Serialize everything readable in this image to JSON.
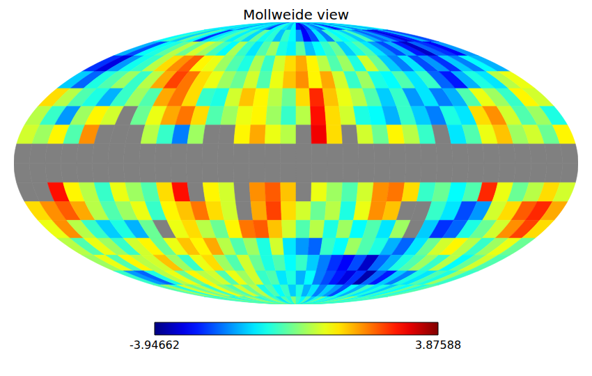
{
  "chart_data": {
    "type": "heatmap",
    "title": "Mollweide view",
    "cells": [
      [
        -1.2,
        -1.0,
        -1.3,
        -0.8,
        -1.5,
        -1.0,
        -2.0,
        -1.2,
        -0.9,
        -1.4,
        -1.1,
        -1.8,
        -2.5,
        -1.0,
        -0.7,
        -1.2,
        -1.5,
        -1.0,
        -2.8,
        -3.2,
        -2.6,
        -1.4,
        -1.8,
        -2.2,
        -1.0,
        -1.6,
        -2.9,
        -2.4,
        -1.2,
        -1.0,
        -2.2,
        -1.6,
        -0.8,
        -1.3,
        -1.9,
        -1.1
      ],
      [
        -1.0,
        -0.6,
        -1.4,
        -0.3,
        -1.0,
        -2.6,
        -1.2,
        -0.8,
        -0.4,
        -1.1,
        -0.5,
        -1.3,
        -0.2,
        -0.9,
        -0.7,
        -1.5,
        -0.6,
        -1.0,
        -1.8,
        -3.0,
        -2.4,
        -1.2,
        -2.0,
        -0.6,
        -1.0,
        -0.8,
        -1.4,
        -0.5,
        -1.6,
        -2.2,
        -1.8,
        -2.6,
        -3.2,
        -2.8,
        -1.6,
        -2.4
      ],
      [
        -1.6,
        -2.4,
        -1.0,
        -0.8,
        -0.3,
        0.4,
        -0.2,
        0.6,
        0.2,
        -0.5,
        -1.0,
        0.3,
        -0.6,
        -1.2,
        -0.4,
        0.2,
        -0.8,
        -1.1,
        -0.3,
        -1.5,
        -1.0,
        -0.6,
        -0.2,
        -1.4,
        -0.8,
        -0.4,
        -1.2,
        -1.8,
        -2.4,
        -1.6,
        -2.8,
        -3.4,
        -2.2,
        -2.6,
        -3.0,
        -1.8
      ],
      [
        -2.6,
        -3.2,
        -1.8,
        -0.9,
        -0.6,
        0.4,
        1.2,
        1.8,
        2.2,
        1.0,
        0.8,
        0.2,
        -0.4,
        -0.8,
        0.3,
        -0.6,
        0.6,
        1.2,
        1.6,
        1.0,
        0.4,
        -0.4,
        0.2,
        -0.8,
        0.6,
        -0.2,
        -1.4,
        -2.0,
        -1.2,
        -2.4,
        -1.8,
        -2.6,
        -1.4,
        -2.0,
        -1.0,
        -1.6
      ],
      [
        -1.4,
        -2.2,
        -0.8,
        -0.4,
        0.2,
        -0.6,
        0.4,
        1.6,
        2.4,
        2.0,
        1.2,
        0.8,
        0.2,
        -0.2,
        0.6,
        -0.4,
        0.8,
        1.4,
        1.8,
        1.0,
        1.6,
        0.6,
        -0.6,
        0.2,
        -0.8,
        -1.0,
        -0.4,
        -1.2,
        -0.6,
        -2.2,
        -2.8,
        -1.6,
        -0.8,
        -1.2,
        0.4,
        0.8
      ],
      [
        1.2,
        0.4,
        -0.4,
        -0.8,
        -1.6,
        -0.6,
        0.2,
        -0.4,
        1.6,
        2.0,
        1.2,
        -0.6,
        -0.8,
        0.6,
        1.4,
        1.0,
        0.4,
        -0.2,
        1.2,
        2.6,
        1.4,
        0.8,
        0.4,
        -0.4,
        -1.4,
        -0.6,
        -1.8,
        -1.2,
        -2.0,
        -1.6,
        -0.4,
        0.8,
        0.2,
        -0.6,
        1.0,
        0.6
      ],
      [
        0.4,
        -0.6,
        -1.8,
        0.2,
        1.0,
        0.6,
        null,
        -0.2,
        0.8,
        1.6,
        2.0,
        1.2,
        -0.4,
        0.2,
        0.8,
        1.0,
        0.2,
        -0.6,
        0.4,
        2.8,
        1.2,
        0.6,
        -0.8,
        -1.0,
        -1.6,
        -0.6,
        -1.4,
        -2.0,
        -0.8,
        -1.2,
        1.2,
        1.8,
        0.6,
        -0.4,
        0.2,
        -0.8
      ],
      [
        0.6,
        0.2,
        1.0,
        -0.4,
        1.8,
        null,
        null,
        null,
        0.4,
        -0.6,
        -2.0,
        0.2,
        null,
        null,
        1.0,
        1.6,
        0.8,
        0.4,
        null,
        3.0,
        1.2,
        null,
        0.6,
        -0.2,
        1.0,
        0.4,
        -0.6,
        null,
        -1.2,
        -0.4,
        0.8,
        1.4,
        0.2,
        0.6,
        -0.2,
        1.0
      ],
      [
        null,
        null,
        null,
        null,
        null,
        null,
        null,
        null,
        null,
        null,
        null,
        null,
        null,
        null,
        null,
        null,
        null,
        null,
        null,
        null,
        null,
        null,
        null,
        null,
        null,
        null,
        null,
        null,
        null,
        null,
        null,
        null,
        null,
        null,
        null,
        null
      ],
      [
        null,
        null,
        null,
        null,
        null,
        null,
        null,
        null,
        null,
        null,
        null,
        null,
        null,
        null,
        null,
        null,
        null,
        null,
        null,
        null,
        null,
        null,
        null,
        null,
        null,
        null,
        null,
        null,
        null,
        null,
        null,
        null,
        null,
        null,
        null,
        null
      ],
      [
        null,
        null,
        2.8,
        1.0,
        0.4,
        -0.6,
        0.8,
        0.2,
        -0.4,
        1.2,
        2.8,
        null,
        1.0,
        0.6,
        null,
        1.8,
        2.2,
        1.4,
        null,
        0.8,
        0.2,
        -0.4,
        0.6,
        1.8,
        2.0,
        1.2,
        -0.6,
        -0.2,
        -1.0,
        -0.4,
        2.6,
        0.8,
        -0.2,
        0.4,
        1.2,
        0.6
      ],
      [
        1.2,
        1.8,
        2.2,
        1.6,
        0.4,
        -0.4,
        0.2,
        0.8,
        -0.6,
        1.0,
        1.4,
        2.0,
        1.2,
        0.6,
        null,
        1.6,
        2.4,
        1.2,
        0.6,
        -0.2,
        0.4,
        -0.8,
        0.8,
        1.8,
        1.4,
        null,
        null,
        -0.6,
        -1.2,
        -2.4,
        -1.8,
        0.6,
        1.2,
        2.2,
        2.6,
        1.6
      ],
      [
        0.8,
        1.8,
        0.4,
        -0.6,
        -1.4,
        -0.8,
        -1.6,
        -0.2,
        null,
        0.8,
        1.2,
        0.4,
        -0.2,
        1.0,
        2.0,
        2.2,
        1.4,
        0.6,
        -0.4,
        0.4,
        -0.8,
        0.2,
        -1.0,
        -0.4,
        -1.2,
        0.2,
        null,
        -1.4,
        -2.6,
        -2.2,
        -0.8,
        -0.2,
        0.6,
        1.8,
        2.4,
        1.2
      ],
      [
        0.4,
        -0.4,
        0.8,
        0.2,
        -0.6,
        0.6,
        1.0,
        -0.2,
        0.8,
        1.4,
        1.0,
        1.6,
        0.4,
        -0.4,
        0.2,
        -0.8,
        0.6,
        -1.2,
        -1.8,
        -2.2,
        -0.6,
        -1.0,
        0.2,
        -0.4,
        -0.8,
        -1.6,
        -2.2,
        -1.2,
        -0.2,
        0.6,
        1.0,
        0.4,
        -0.6,
        0.2,
        0.8,
        -0.2
      ],
      [
        0.2,
        0.8,
        -0.4,
        1.0,
        0.4,
        0.6,
        1.4,
        0.2,
        -0.6,
        0.8,
        1.2,
        0.2,
        -0.4,
        0.6,
        -0.2,
        -0.8,
        -0.4,
        -1.0,
        -0.6,
        -1.4,
        -2.0,
        -2.6,
        -3.0,
        -2.4,
        -3.4,
        -2.2,
        -1.6,
        -0.8,
        -0.4,
        0.2,
        -0.6,
        0.4,
        -1.0,
        -0.2,
        0.6,
        -0.4
      ],
      [
        -0.6,
        -1.8,
        -2.2,
        -0.8,
        0.4,
        0.8,
        -0.2,
        1.0,
        0.4,
        0.6,
        -0.4,
        0.8,
        0.2,
        0.6,
        -0.6,
        -0.4,
        -1.2,
        -0.8,
        -1.6,
        -1.0,
        -2.0,
        -2.4,
        -2.8,
        -3.2,
        -2.6,
        -3.6,
        -2.2,
        -2.8,
        -1.4,
        -2.0,
        -0.8,
        -1.2,
        -0.4,
        -0.8,
        0.2,
        -0.6
      ],
      [
        -0.4,
        0.2,
        -0.8,
        0.6,
        -0.2,
        0.4,
        -0.6,
        0.8,
        0.0,
        -0.4,
        0.6,
        -0.2,
        0.4,
        -0.8,
        -0.4,
        -1.0,
        -0.6,
        -1.4,
        -0.8,
        -1.6,
        -1.2,
        -2.0,
        -1.4,
        -1.8,
        -2.4,
        -1.0,
        -1.6,
        -0.6,
        -1.2,
        -0.8,
        -1.4,
        -0.6,
        -1.0,
        -0.2,
        -0.8,
        -0.4
      ],
      [
        -0.6,
        -0.2,
        -0.8,
        0.2,
        -0.4,
        -1.0,
        0.0,
        -0.6,
        0.4,
        -0.2,
        -0.8,
        -0.4,
        0.2,
        -0.6,
        -1.2,
        -0.4,
        -0.8,
        0.0,
        -0.6,
        -1.0,
        -0.4,
        -1.4,
        -0.8,
        -0.2,
        -1.0,
        -0.6,
        -1.2,
        -0.4,
        -0.8,
        0.2,
        -0.6,
        -1.0,
        -0.2,
        -0.8,
        -0.4,
        -0.6
      ]
    ],
    "colorbar": {
      "range": [
        -3.94662,
        3.87588
      ],
      "ticks": [
        -3.94662,
        3.87588
      ]
    }
  }
}
